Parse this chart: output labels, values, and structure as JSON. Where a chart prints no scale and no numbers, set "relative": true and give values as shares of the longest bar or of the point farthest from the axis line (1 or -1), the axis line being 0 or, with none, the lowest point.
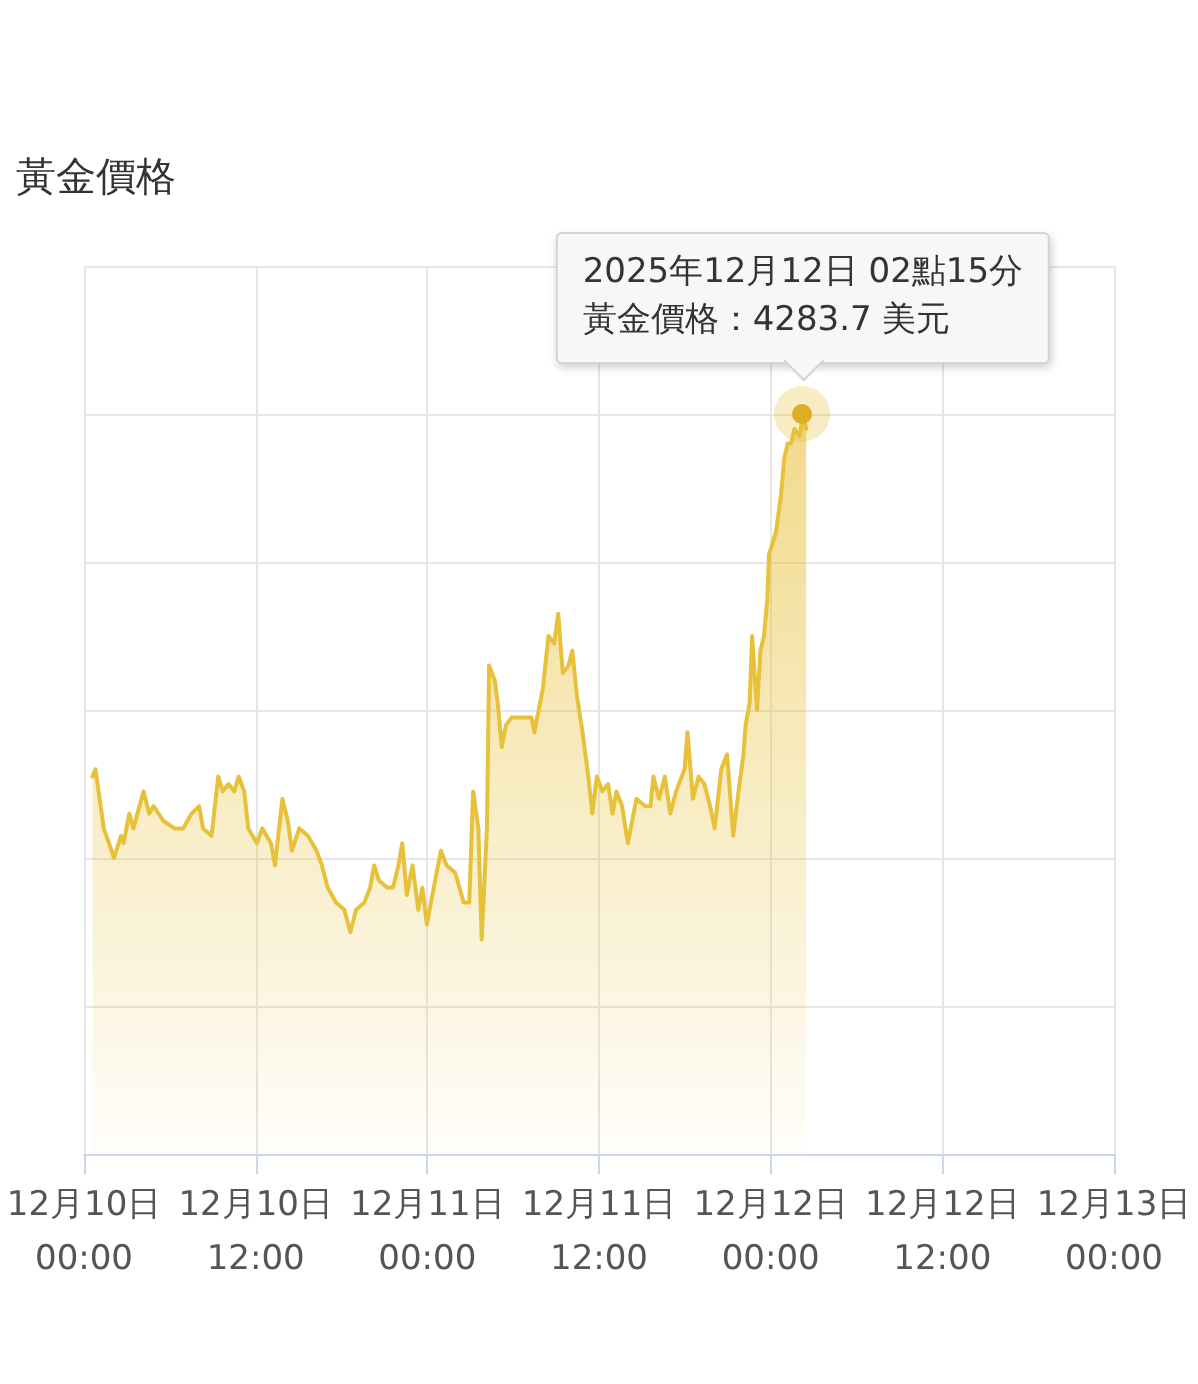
{
  "chart_data": {
    "type": "area",
    "title": "黃金價格",
    "relative": true,
    "color": "#e8c13a",
    "grid": true,
    "xlim": [
      "2025-12-10T00:00",
      "2025-12-13T00:00"
    ],
    "xticks": [
      {
        "value": "2025-12-10T00:00",
        "label": "12月10日\n00:00"
      },
      {
        "value": "2025-12-10T12:00",
        "label": "12月10日\n12:00"
      },
      {
        "value": "2025-12-11T00:00",
        "label": "12月11日\n00:00"
      },
      {
        "value": "2025-12-11T12:00",
        "label": "12月11日\n12:00"
      },
      {
        "value": "2025-12-12T00:00",
        "label": "12月12日\n00:00"
      },
      {
        "value": "2025-12-12T12:00",
        "label": "12月12日\n12:00"
      },
      {
        "value": "2025-12-13T00:00",
        "label": "12月13日\n00:00"
      }
    ],
    "x": [
      "2025-12-10T00:36",
      "2025-12-10T00:48",
      "2025-12-10T01:23",
      "2025-12-10T02:06",
      "2025-12-10T02:35",
      "2025-12-10T02:46",
      "2025-12-10T03:10",
      "2025-12-10T03:27",
      "2025-12-10T04:10",
      "2025-12-10T04:33",
      "2025-12-10T04:52",
      "2025-12-10T05:33",
      "2025-12-10T06:20",
      "2025-12-10T06:56",
      "2025-12-10T07:31",
      "2025-12-10T08:03",
      "2025-12-10T08:19",
      "2025-12-10T08:55",
      "2025-12-10T09:23",
      "2025-12-10T09:42",
      "2025-12-10T10:06",
      "2025-12-10T10:30",
      "2025-12-10T10:49",
      "2025-12-10T11:12",
      "2025-12-10T11:29",
      "2025-12-10T12:05",
      "2025-12-10T12:28",
      "2025-12-10T13:04",
      "2025-12-10T13:21",
      "2025-12-10T13:52",
      "2025-12-10T14:15",
      "2025-12-10T14:32",
      "2025-12-10T15:03",
      "2025-12-10T15:39",
      "2025-12-10T16:15",
      "2025-12-10T16:38",
      "2025-12-10T17:02",
      "2025-12-10T17:37",
      "2025-12-10T18:12",
      "2025-12-10T18:37",
      "2025-12-10T19:01",
      "2025-12-10T19:36",
      "2025-12-10T20:00",
      "2025-12-10T20:17",
      "2025-12-10T20:36",
      "2025-12-10T21:11",
      "2025-12-10T21:36",
      "2025-12-10T21:59",
      "2025-12-10T22:15",
      "2025-12-10T22:34",
      "2025-12-10T22:58",
      "2025-12-10T23:22",
      "2025-12-10T23:39",
      "2025-12-10T23:58",
      "2025-12-11T00:21",
      "2025-12-11T00:57",
      "2025-12-11T01:21",
      "2025-12-11T01:57",
      "2025-12-11T02:32",
      "2025-12-11T02:56",
      "2025-12-11T03:12",
      "2025-12-11T03:34",
      "2025-12-11T03:48",
      "2025-12-11T04:10",
      "2025-12-11T04:19",
      "2025-12-11T04:43",
      "2025-12-11T04:55",
      "2025-12-11T05:12",
      "2025-12-11T05:30",
      "2025-12-11T05:54",
      "2025-12-11T07:17",
      "2025-12-11T07:29",
      "2025-12-11T08:05",
      "2025-12-11T08:28",
      "2025-12-11T08:52",
      "2025-12-11T09:09",
      "2025-12-11T09:28",
      "2025-12-11T09:52",
      "2025-12-11T10:08",
      "2025-12-11T10:27",
      "2025-12-11T10:51",
      "2025-12-11T11:15",
      "2025-12-11T11:32",
      "2025-12-11T11:51",
      "2025-12-11T12:14",
      "2025-12-11T12:38",
      "2025-12-11T12:57",
      "2025-12-11T13:13",
      "2025-12-11T13:37",
      "2025-12-11T14:01",
      "2025-12-11T14:37",
      "2025-12-11T15:13",
      "2025-12-11T15:36",
      "2025-12-11T15:48",
      "2025-12-11T16:12",
      "2025-12-11T16:36",
      "2025-12-11T16:59",
      "2025-12-11T17:23",
      "2025-12-11T17:59",
      "2025-12-11T18:11",
      "2025-12-11T18:34",
      "2025-12-11T18:58",
      "2025-12-11T19:22",
      "2025-12-11T19:46",
      "2025-12-11T20:05",
      "2025-12-11T20:33",
      "2025-12-11T20:57",
      "2025-12-11T21:23",
      "2025-12-11T21:45",
      "2025-12-11T22:06",
      "2025-12-11T22:15",
      "2025-12-11T22:32",
      "2025-12-11T22:42",
      "2025-12-11T23:03",
      "2025-12-11T23:17",
      "2025-12-11T23:32",
      "2025-12-11T23:46",
      "2025-12-11T23:53",
      "2025-12-12T00:22",
      "2025-12-12T00:43",
      "2025-12-12T00:57",
      "2025-12-12T01:11",
      "2025-12-12T01:26",
      "2025-12-12T01:40",
      "2025-12-12T02:02",
      "2025-12-12T02:15",
      "2025-12-12T02:29"
    ],
    "values": [
      0.51,
      0.52,
      0.44,
      0.4,
      0.43,
      0.42,
      0.46,
      0.44,
      0.49,
      0.46,
      0.47,
      0.45,
      0.44,
      0.44,
      0.46,
      0.47,
      0.44,
      0.43,
      0.51,
      0.49,
      0.5,
      0.49,
      0.51,
      0.49,
      0.44,
      0.42,
      0.44,
      0.42,
      0.39,
      0.48,
      0.45,
      0.41,
      0.44,
      0.43,
      0.41,
      0.39,
      0.36,
      0.34,
      0.33,
      0.3,
      0.33,
      0.34,
      0.36,
      0.39,
      0.37,
      0.36,
      0.36,
      0.39,
      0.42,
      0.35,
      0.39,
      0.33,
      0.36,
      0.31,
      0.35,
      0.41,
      0.39,
      0.38,
      0.34,
      0.34,
      0.49,
      0.44,
      0.29,
      0.44,
      0.66,
      0.64,
      0.61,
      0.55,
      0.58,
      0.59,
      0.59,
      0.57,
      0.63,
      0.7,
      0.69,
      0.73,
      0.65,
      0.66,
      0.68,
      0.62,
      0.57,
      0.51,
      0.46,
      0.51,
      0.49,
      0.5,
      0.46,
      0.49,
      0.47,
      0.42,
      0.48,
      0.47,
      0.47,
      0.51,
      0.48,
      0.51,
      0.46,
      0.49,
      0.52,
      0.57,
      0.48,
      0.51,
      0.5,
      0.47,
      0.44,
      0.52,
      0.54,
      0.43,
      0.49,
      0.54,
      0.58,
      0.61,
      0.7,
      0.6,
      0.68,
      0.7,
      0.75,
      0.81,
      0.84,
      0.89,
      0.94,
      0.96,
      0.96,
      0.98,
      0.97,
      1,
      0.98
    ],
    "annotations": [
      "2025年12月12日 02點15分",
      {
        "text": "黃金價格：4283.7 美元",
        "x": "2025-12-12T02:15",
        "y": 1
      }
    ]
  }
}
